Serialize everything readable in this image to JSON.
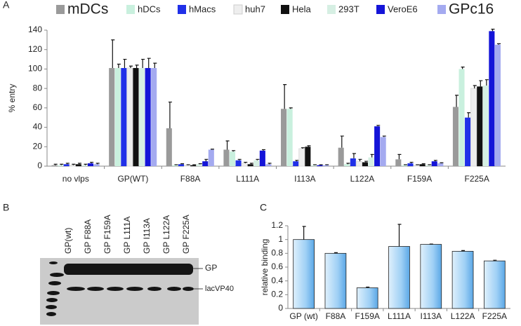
{
  "panel_labels": [
    "A",
    "B",
    "C"
  ],
  "chart_data": [
    {
      "type": "bar",
      "ylabel": "% entry",
      "categories": [
        "no vlps",
        "GP(WT)",
        "F88A",
        "L111A",
        "I113A",
        "L122A",
        "F159A",
        "F225A"
      ],
      "ylim": [
        0,
        140
      ],
      "yticks": [
        0,
        20,
        40,
        60,
        80,
        100,
        120,
        140
      ],
      "series": [
        {
          "name": "mDCs",
          "color": "#9a9a9a",
          "values": [
            1,
            101,
            39,
            17,
            59,
            19,
            7,
            61
          ],
          "errors": [
            1,
            29,
            27,
            9,
            25,
            12,
            5,
            12
          ]
        },
        {
          "name": "hDCs",
          "color": "#c9f0de",
          "values": [
            1,
            101,
            1,
            15,
            59,
            2,
            1,
            100
          ],
          "errors": [
            1,
            4,
            0.5,
            1,
            1,
            1,
            0.5,
            2
          ]
        },
        {
          "name": "hMacs",
          "color": "#2030e8",
          "values": [
            2,
            101,
            2,
            6,
            5,
            8,
            3,
            50
          ],
          "errors": [
            1,
            9,
            0.5,
            1,
            1,
            5,
            1,
            5
          ]
        },
        {
          "name": "huh7",
          "color": "#eeeeee",
          "values": [
            1,
            101,
            1,
            3,
            18,
            5,
            1,
            80
          ],
          "errors": [
            1,
            2,
            0.5,
            1,
            1,
            2,
            0.5,
            3
          ]
        },
        {
          "name": "Hela",
          "color": "#111111",
          "values": [
            2,
            101,
            1,
            2,
            20,
            4,
            2,
            82
          ],
          "errors": [
            1,
            3,
            0.5,
            1,
            1,
            1,
            0.5,
            6
          ]
        },
        {
          "name": "293T",
          "color": "#d6efe3",
          "values": [
            1,
            101,
            2,
            6,
            1,
            9,
            1,
            83
          ],
          "errors": [
            1,
            9,
            0.5,
            1,
            0.5,
            3,
            0.5,
            6
          ]
        },
        {
          "name": "VeroE6",
          "color": "#1414d8",
          "values": [
            3,
            101,
            5,
            16,
            1,
            41,
            5,
            139
          ],
          "errors": [
            1,
            10,
            2,
            1,
            0.5,
            1,
            1,
            2
          ]
        },
        {
          "name": "GPc16",
          "color": "#a4aaf0",
          "values": [
            2,
            101,
            17,
            2,
            1,
            30,
            3,
            125
          ],
          "errors": [
            1,
            5,
            0.5,
            1,
            0.5,
            1,
            0.5,
            1
          ]
        }
      ]
    },
    {
      "type": "bar",
      "ylabel": "relative binding",
      "categories": [
        "GP (wt)",
        "F88A",
        "F159A",
        "L111A",
        "I113A",
        "L122A",
        "F225A"
      ],
      "color": "#7fc0ef",
      "ylim": [
        0,
        1.2
      ],
      "yticks": [
        0,
        0.2,
        0.4,
        0.6,
        0.8,
        1,
        1.2
      ],
      "values": [
        1.0,
        0.8,
        0.3,
        0.9,
        0.93,
        0.83,
        0.69
      ],
      "errors": [
        0.19,
        0.01,
        0.01,
        0.32,
        0.005,
        0.01,
        0.01
      ]
    }
  ],
  "blot": {
    "lanes": [
      "GP(wt)",
      "GP F88A",
      "GP F159A",
      "GP L111A",
      "GP I113A",
      "GP L122A",
      "GP F225A"
    ],
    "bands": [
      "GP",
      "lacVP40"
    ]
  }
}
